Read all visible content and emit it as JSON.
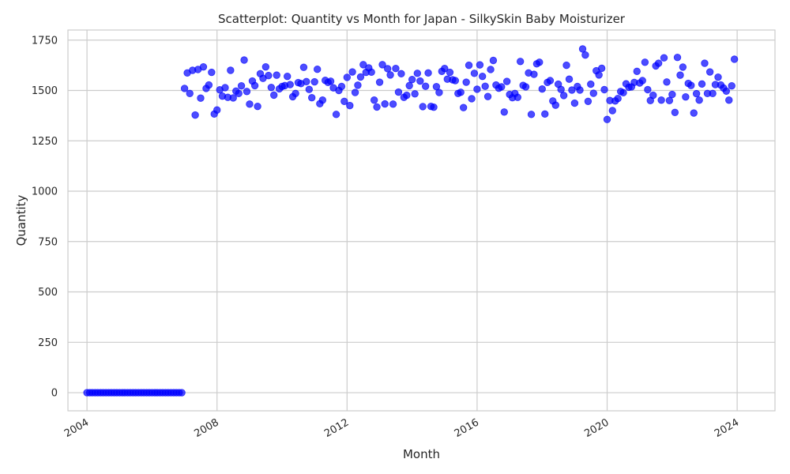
{
  "chart_data": {
    "type": "scatter",
    "title": "Scatterplot: Quantity vs Month for Japan - SilkySkin Baby Moisturizer",
    "xlabel": "Month",
    "ylabel": "Quantity",
    "x_type": "date",
    "xlim": [
      "2003-06-01",
      "2025-03-01"
    ],
    "ylim": [
      -90,
      1800
    ],
    "x_ticks": [
      "2004",
      "2008",
      "2012",
      "2016",
      "2020",
      "2024"
    ],
    "y_ticks": [
      0,
      250,
      500,
      750,
      1000,
      1250,
      1500,
      1750
    ],
    "grid": true,
    "legend": "none",
    "color": "#0000ff",
    "series": [
      {
        "start": "2004-01",
        "frequency": "monthly",
        "values": [
          0,
          0,
          0,
          0,
          0,
          0,
          0,
          0,
          0,
          0,
          0,
          0,
          0,
          0,
          0,
          0,
          0,
          0,
          0,
          0,
          0,
          0,
          0,
          0,
          0,
          0,
          0,
          0,
          0,
          0,
          0,
          0,
          0,
          0,
          0,
          0,
          1510,
          1587,
          1485,
          1600,
          1378,
          1604,
          1462,
          1617,
          1510,
          1527,
          1590,
          1383,
          1403,
          1503,
          1472,
          1514,
          1466,
          1600,
          1463,
          1497,
          1485,
          1523,
          1651,
          1495,
          1432,
          1547,
          1524,
          1421,
          1583,
          1560,
          1617,
          1574,
          1515,
          1477,
          1576,
          1508,
          1520,
          1524,
          1570,
          1529,
          1469,
          1485,
          1539,
          1534,
          1615,
          1544,
          1505,
          1464,
          1543,
          1605,
          1434,
          1452,
          1550,
          1540,
          1546,
          1513,
          1381,
          1500,
          1520,
          1446,
          1565,
          1425,
          1592,
          1490,
          1526,
          1567,
          1628,
          1590,
          1612,
          1591,
          1452,
          1418,
          1541,
          1628,
          1433,
          1608,
          1577,
          1432,
          1609,
          1492,
          1583,
          1466,
          1476,
          1524,
          1554,
          1483,
          1585,
          1547,
          1420,
          1521,
          1587,
          1421,
          1417,
          1519,
          1490,
          1595,
          1609,
          1556,
          1590,
          1553,
          1549,
          1485,
          1491,
          1415,
          1541,
          1625,
          1459,
          1585,
          1506,
          1627,
          1570,
          1521,
          1470,
          1604,
          1649,
          1527,
          1511,
          1518,
          1393,
          1545,
          1480,
          1464,
          1485,
          1466,
          1644,
          1525,
          1518,
          1587,
          1381,
          1580,
          1632,
          1640,
          1507,
          1383,
          1540,
          1549,
          1448,
          1427,
          1531,
          1505,
          1475,
          1625,
          1556,
          1502,
          1437,
          1520,
          1502,
          1706,
          1676,
          1446,
          1531,
          1486,
          1598,
          1577,
          1610,
          1504,
          1356,
          1450,
          1400,
          1448,
          1460,
          1495,
          1489,
          1533,
          1516,
          1518,
          1540,
          1595,
          1537,
          1549,
          1640,
          1504,
          1450,
          1476,
          1622,
          1635,
          1452,
          1662,
          1542,
          1450,
          1480,
          1391,
          1664,
          1576,
          1616,
          1468,
          1535,
          1525,
          1388,
          1484,
          1452,
          1532,
          1635,
          1485,
          1592,
          1485,
          1529,
          1566,
          1527,
          1512,
          1497,
          1452,
          1523,
          1655
        ]
      }
    ]
  }
}
